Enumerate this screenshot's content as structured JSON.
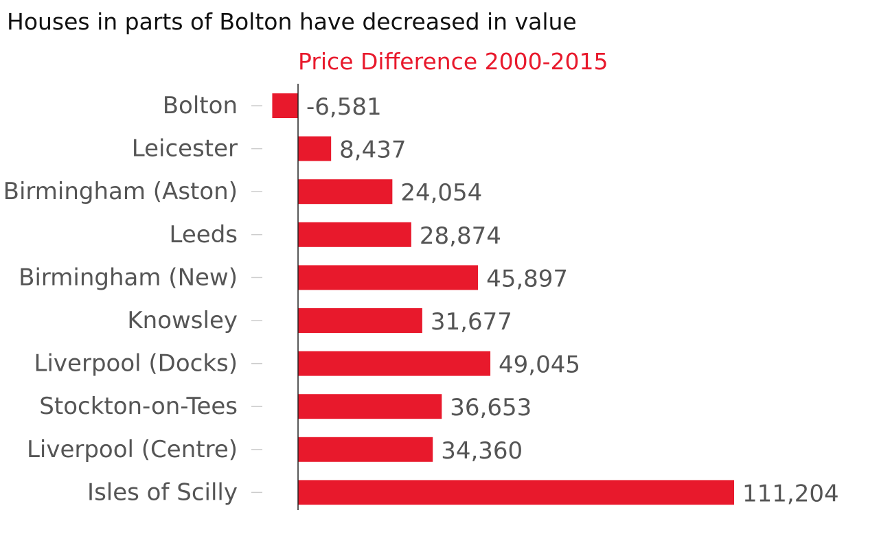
{
  "chart_data": {
    "type": "bar",
    "orientation": "horizontal",
    "title": "Houses in parts of Bolton have decreased in value",
    "subtitle": "Price Difference 2000-2015",
    "categories": [
      "Bolton",
      "Leicester",
      "Birmingham (Aston)",
      "Leeds",
      "Birmingham (New)",
      "Knowsley",
      "Liverpool (Docks)",
      "Stockton-on-Tees",
      "Liverpool (Centre)",
      "Isles of Scilly"
    ],
    "values": [
      -6581,
      8437,
      24054,
      28874,
      45897,
      31677,
      49045,
      36653,
      34360,
      111204
    ],
    "value_labels": [
      "-6,581",
      "8,437",
      "24,054",
      "28,874",
      "45,897",
      "31,677",
      "49,045",
      "36,653",
      "34,360",
      "111,204"
    ],
    "xlim": [
      -6581,
      111204
    ],
    "grid": false,
    "bar_color": "#e8192c",
    "subtitle_color": "#e8192c"
  }
}
